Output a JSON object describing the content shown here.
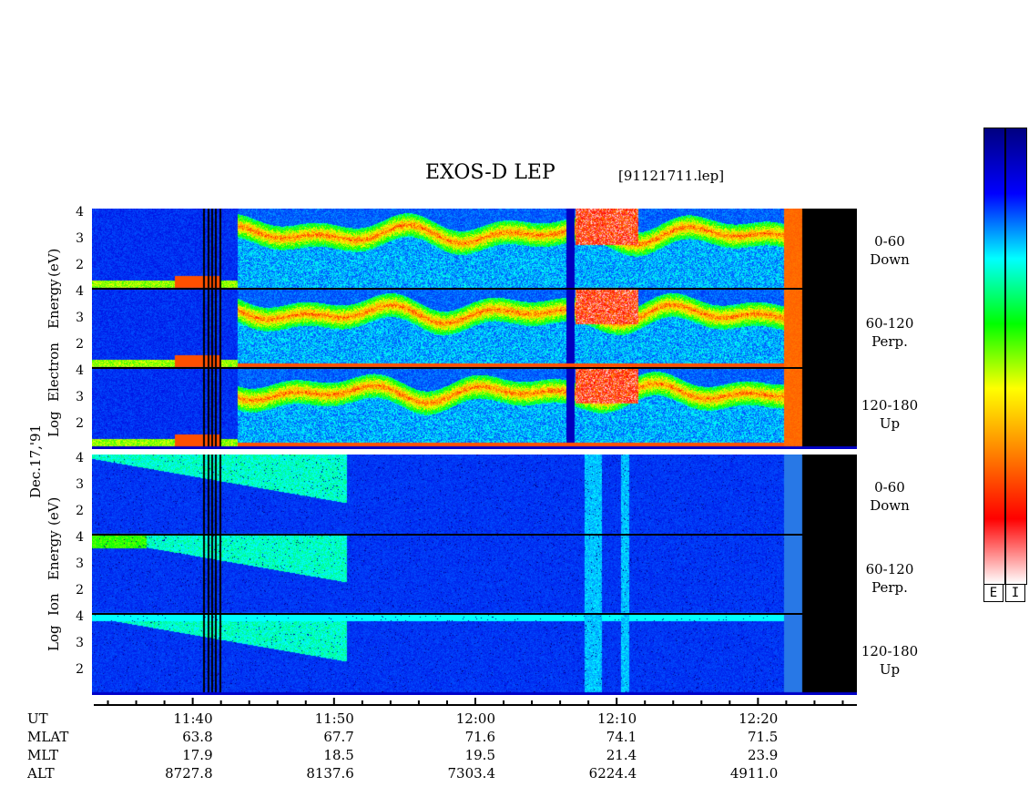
{
  "chart_data": {
    "type": "heatmap",
    "title": "EXOS-D LEP",
    "file": "[91121711.lep]",
    "date_label": "Dec.17,'91",
    "electron_axis": [
      "Log",
      "Electron",
      "Energy",
      "(eV)"
    ],
    "ion_axis": [
      "Log",
      "Ion",
      "Energy",
      "(eV)"
    ],
    "y_ticks": [
      "4",
      "3",
      "2"
    ],
    "panels": [
      {
        "species": "Electron",
        "pitch": "0-60",
        "dir": "Down"
      },
      {
        "species": "Electron",
        "pitch": "60-120",
        "dir": "Perp."
      },
      {
        "species": "Electron",
        "pitch": "120-180",
        "dir": "Up"
      },
      {
        "species": "Ion",
        "pitch": "0-60",
        "dir": "Down"
      },
      {
        "species": "Ion",
        "pitch": "60-120",
        "dir": "Perp."
      },
      {
        "species": "Ion",
        "pitch": "120-180",
        "dir": "Up"
      }
    ],
    "y_range_log_ev": [
      1,
      4
    ],
    "x_range_ut": [
      "11:33",
      "12:27"
    ],
    "x_tick_labels": [
      "11:40",
      "11:50",
      "12:00",
      "12:10",
      "12:20"
    ],
    "row_labels": [
      "UT",
      "MLAT",
      "MLT",
      "ALT"
    ],
    "ephemeris": {
      "MLAT": [
        "63.8",
        "67.7",
        "71.6",
        "74.1",
        "71.5"
      ],
      "MLT": [
        "17.9",
        "18.5",
        "19.5",
        "21.4",
        "23.9"
      ],
      "ALT": [
        "8727.8",
        "8137.6",
        "7303.4",
        "6224.4",
        "4911.0"
      ]
    },
    "colorbar_labels": [
      "E",
      "I"
    ],
    "colormap": [
      "#ffffff",
      "#ff0000",
      "#ff8000",
      "#ffff00",
      "#00ff00",
      "#00ffff",
      "#0000ff",
      "#000080"
    ]
  }
}
